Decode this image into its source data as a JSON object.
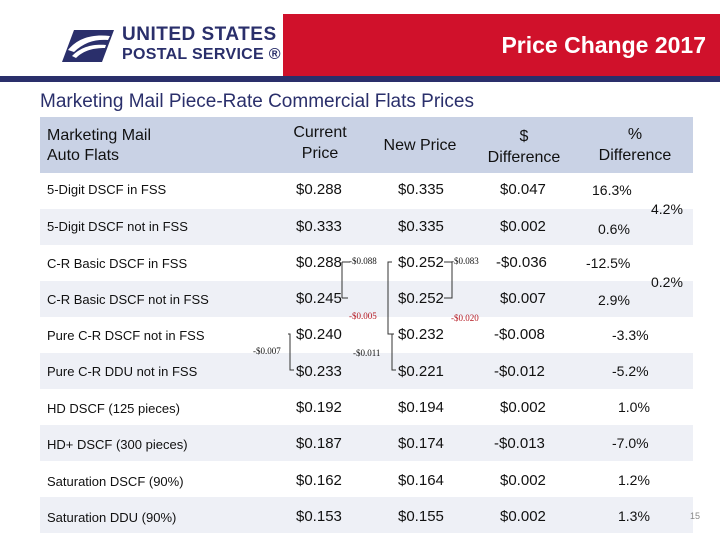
{
  "logo": {
    "line1": "UNITED STATES",
    "line2": "POSTAL SERVICE ®"
  },
  "slide_title": "Price Change 2017",
  "subtitle": "Marketing Mail Piece-Rate Commercial Flats Prices",
  "table": {
    "header": {
      "category": [
        "Marketing Mail",
        "Auto Flats"
      ],
      "current": [
        "Current",
        "Price"
      ],
      "new": "New Price",
      "diff": [
        "$",
        "Difference"
      ],
      "pct": [
        "%",
        "Difference"
      ]
    },
    "rows": [
      {
        "label": "5-Digit DSCF in FSS",
        "current": "$0.288",
        "new": "$0.335",
        "diff": "$0.047",
        "pct": "16.3%"
      },
      {
        "label": "5-Digit DSCF not in FSS",
        "current": "$0.333",
        "new": "$0.335",
        "diff": "$0.002",
        "pct": "0.6%"
      },
      {
        "label": "C-R Basic DSCF in FSS",
        "current": "$0.288",
        "new": "$0.252",
        "diff": "-$0.036",
        "pct": "-12.5%"
      },
      {
        "label": "C-R Basic DSCF not in FSS",
        "current": "$0.245",
        "new": "$0.252",
        "diff": "$0.007",
        "pct": "2.9%"
      },
      {
        "label": "Pure C-R DSCF not in FSS",
        "current": "$0.240",
        "new": "$0.232",
        "diff": "-$0.008",
        "pct": "-3.3%"
      },
      {
        "label": "Pure C-R DDU not in FSS",
        "current": "$0.233",
        "new": "$0.221",
        "diff": "-$0.012",
        "pct": "-5.2%"
      },
      {
        "label": "HD DSCF (125 pieces)",
        "current": "$0.192",
        "new": "$0.194",
        "diff": "$0.002",
        "pct": "1.0%"
      },
      {
        "label": "HD+ DSCF (300 pieces)",
        "current": "$0.187",
        "new": "$0.174",
        "diff": "-$0.013",
        "pct": "-7.0%"
      },
      {
        "label": "Saturation DSCF (90%)",
        "current": "$0.162",
        "new": "$0.164",
        "diff": "$0.002",
        "pct": "1.2%"
      },
      {
        "label": "Saturation DDU (90%)",
        "current": "$0.153",
        "new": "$0.155",
        "diff": "$0.002",
        "pct": "1.3%"
      }
    ],
    "group_pct": [
      "4.2%",
      "0.2%"
    ]
  },
  "annotations": {
    "a1": "-$0.088",
    "a2": "-$0.083",
    "a3": "-$0.005",
    "a4": "-$0.020",
    "a5": "-$0.007",
    "a6": "-$0.011"
  },
  "page_number": "15",
  "colors": {
    "red": "#d0112b",
    "navy": "#2a2f6b",
    "header_bg": "#c9d2e5",
    "band_bg": "#eef0f6"
  }
}
